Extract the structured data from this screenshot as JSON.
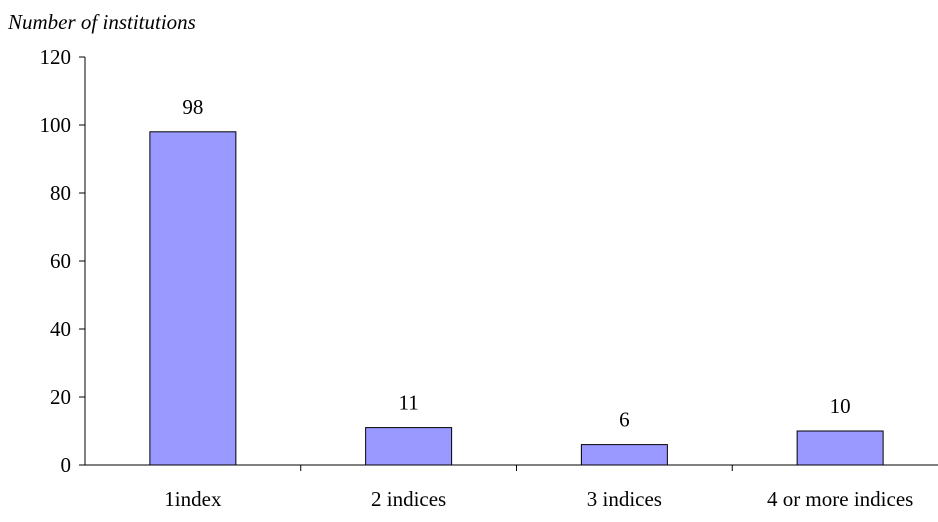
{
  "chart_data": {
    "type": "bar",
    "title": "",
    "xlabel": "",
    "ylabel": "Number of institutions",
    "categories": [
      "1index",
      "2 indices",
      "3 indices",
      "4 or more indices"
    ],
    "values": [
      98,
      11,
      6,
      10
    ],
    "data_labels": [
      "98",
      "11",
      "6",
      "10"
    ],
    "ylim": [
      0,
      120
    ],
    "yticks": [
      0,
      20,
      40,
      60,
      80,
      100,
      120
    ],
    "grid": false,
    "legend": "none",
    "bar_color": "#9999ff",
    "bar_edge_color": "#000000"
  }
}
